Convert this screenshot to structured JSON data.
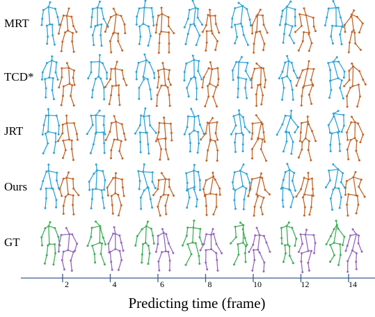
{
  "rows": [
    {
      "label": "MRT"
    },
    {
      "label": "TCD*"
    },
    {
      "label": "JRT"
    },
    {
      "label": "Ours"
    },
    {
      "label": "GT"
    }
  ],
  "axis": {
    "ticks": [
      2,
      4,
      6,
      8,
      10,
      12,
      14
    ],
    "label": "Predicting time (frame)"
  }
}
